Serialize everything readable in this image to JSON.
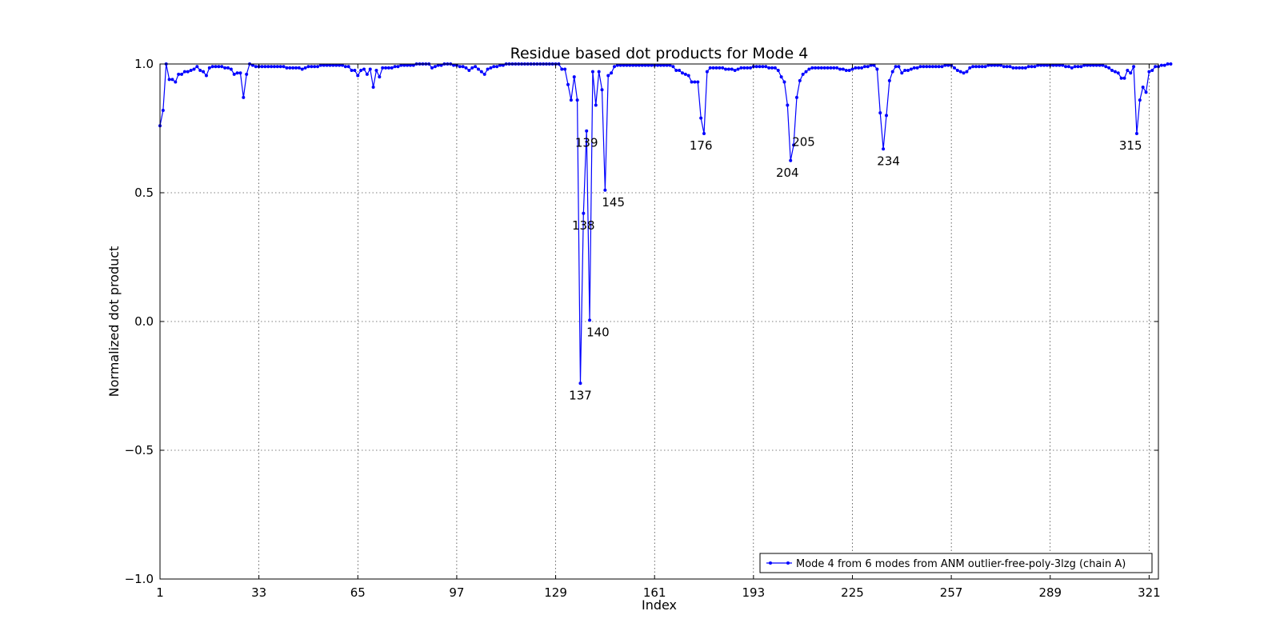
{
  "chart_data": {
    "type": "line",
    "title": "Residue based dot products for Mode 4",
    "xlabel": "Index",
    "ylabel": "Normalized dot product",
    "xlim": [
      1,
      324
    ],
    "ylim": [
      -1.0,
      1.0
    ],
    "x_ticks": [
      1,
      33,
      65,
      97,
      129,
      161,
      193,
      225,
      257,
      289,
      321
    ],
    "y_ticks": [
      -1.0,
      -0.5,
      0.0,
      0.5,
      1.0
    ],
    "y_tick_labels": [
      "−1.0",
      "−0.5",
      "0.0",
      "0.5",
      "1.0"
    ],
    "grid": true,
    "legend_position": "lower-right",
    "series": [
      {
        "name": "Mode 4 from 6 modes from ANM outlier-free-poly-3lzg (chain A)",
        "color": "#0000ff",
        "x_start": 1,
        "values": [
          0.76,
          0.82,
          1.0,
          0.94,
          0.94,
          0.93,
          0.96,
          0.96,
          0.97,
          0.97,
          0.975,
          0.98,
          0.99,
          0.975,
          0.97,
          0.955,
          0.985,
          0.99,
          0.99,
          0.99,
          0.99,
          0.985,
          0.985,
          0.98,
          0.96,
          0.965,
          0.965,
          0.87,
          0.96,
          1.0,
          0.995,
          0.99,
          0.99,
          0.99,
          0.99,
          0.99,
          0.99,
          0.99,
          0.99,
          0.99,
          0.99,
          0.985,
          0.985,
          0.985,
          0.985,
          0.985,
          0.98,
          0.985,
          0.99,
          0.99,
          0.99,
          0.99,
          0.995,
          0.995,
          0.995,
          0.995,
          0.995,
          0.995,
          0.995,
          0.995,
          0.99,
          0.99,
          0.975,
          0.975,
          0.955,
          0.975,
          0.98,
          0.96,
          0.98,
          0.91,
          0.975,
          0.95,
          0.985,
          0.985,
          0.985,
          0.985,
          0.99,
          0.99,
          0.995,
          0.995,
          0.995,
          0.995,
          0.995,
          1.0,
          1.0,
          1.0,
          1.0,
          1.0,
          0.985,
          0.99,
          0.995,
          0.995,
          1.0,
          1.0,
          1.0,
          0.995,
          0.995,
          0.99,
          0.99,
          0.985,
          0.975,
          0.985,
          0.99,
          0.98,
          0.97,
          0.96,
          0.98,
          0.985,
          0.99,
          0.99,
          0.995,
          0.995,
          1.0,
          1.0,
          1.0,
          1.0,
          1.0,
          1.0,
          1.0,
          1.0,
          1.0,
          1.0,
          1.0,
          1.0,
          1.0,
          1.0,
          1.0,
          1.0,
          1.0,
          1.0,
          0.98,
          0.98,
          0.92,
          0.86,
          0.95,
          0.86,
          -0.24,
          0.42,
          0.74,
          0.005,
          0.97,
          0.84,
          0.97,
          0.9,
          0.51,
          0.955,
          0.965,
          0.99,
          0.995,
          0.995,
          0.995,
          0.995,
          0.995,
          0.995,
          0.995,
          0.995,
          0.995,
          0.995,
          0.995,
          0.995,
          0.995,
          0.995,
          0.995,
          0.995,
          0.995,
          0.995,
          0.99,
          0.975,
          0.975,
          0.965,
          0.96,
          0.955,
          0.93,
          0.93,
          0.93,
          0.79,
          0.73,
          0.97,
          0.985,
          0.985,
          0.985,
          0.985,
          0.985,
          0.98,
          0.98,
          0.98,
          0.975,
          0.98,
          0.985,
          0.985,
          0.985,
          0.985,
          0.99,
          0.99,
          0.99,
          0.99,
          0.99,
          0.985,
          0.985,
          0.985,
          0.975,
          0.95,
          0.93,
          0.84,
          0.625,
          0.685,
          0.87,
          0.935,
          0.96,
          0.97,
          0.98,
          0.985,
          0.985,
          0.985,
          0.985,
          0.985,
          0.985,
          0.985,
          0.985,
          0.985,
          0.98,
          0.98,
          0.975,
          0.975,
          0.98,
          0.985,
          0.985,
          0.985,
          0.99,
          0.99,
          0.995,
          0.995,
          0.98,
          0.81,
          0.67,
          0.8,
          0.935,
          0.97,
          0.99,
          0.99,
          0.965,
          0.975,
          0.975,
          0.98,
          0.985,
          0.985,
          0.99,
          0.99,
          0.99,
          0.99,
          0.99,
          0.99,
          0.99,
          0.99,
          0.995,
          0.995,
          0.995,
          0.985,
          0.975,
          0.97,
          0.965,
          0.97,
          0.985,
          0.99,
          0.99,
          0.99,
          0.99,
          0.99,
          0.995,
          0.995,
          0.995,
          0.995,
          0.995,
          0.99,
          0.99,
          0.99,
          0.985,
          0.985,
          0.985,
          0.985,
          0.985,
          0.99,
          0.99,
          0.99,
          0.995,
          0.995,
          0.995,
          0.995,
          0.995,
          0.995,
          0.995,
          0.995,
          0.995,
          0.99,
          0.99,
          0.985,
          0.99,
          0.99,
          0.99,
          0.995,
          0.995,
          0.995,
          0.995,
          0.995,
          0.995,
          0.995,
          0.99,
          0.985,
          0.975,
          0.97,
          0.965,
          0.945,
          0.945,
          0.975,
          0.965,
          0.99,
          0.73,
          0.86,
          0.91,
          0.89,
          0.97,
          0.975,
          0.99,
          0.99,
          0.995,
          0.995,
          1.0,
          1.0
        ]
      }
    ],
    "annotations": [
      {
        "text": "137",
        "x": 137,
        "y": -0.24,
        "place": "below"
      },
      {
        "text": "138",
        "x": 138,
        "y": 0.42,
        "place": "below"
      },
      {
        "text": "139",
        "x": 139,
        "y": 0.74,
        "place": "below"
      },
      {
        "text": "140",
        "x": 140,
        "y": 0.005,
        "place": "below-right"
      },
      {
        "text": "145",
        "x": 145,
        "y": 0.51,
        "place": "below-right"
      },
      {
        "text": "176",
        "x": 176,
        "y": 0.73,
        "place": "below"
      },
      {
        "text": "204",
        "x": 204,
        "y": 0.625,
        "place": "below"
      },
      {
        "text": "205",
        "x": 205,
        "y": 0.685,
        "place": "right"
      },
      {
        "text": "234",
        "x": 234,
        "y": 0.67,
        "place": "below-right"
      },
      {
        "text": "315",
        "x": 315,
        "y": 0.73,
        "place": "below"
      }
    ]
  }
}
